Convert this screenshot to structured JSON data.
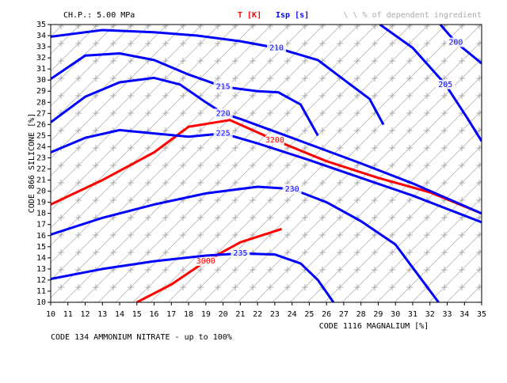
{
  "chart_data": {
    "type": "contour",
    "title": "CH.P.: 5.00 MPa",
    "hatch_legend": "\\ \\ % of dependent ingredient",
    "x_label": "CODE 1116 MAGNALIUM [%]",
    "y_label": "CODE 866 SILICONE [%]",
    "note": "CODE  134 AMMONIUM NITRATE - up to 100%",
    "xlim": [
      10,
      35
    ],
    "ylim": [
      10,
      35
    ],
    "xticks": [
      10,
      11,
      12,
      13,
      14,
      15,
      16,
      17,
      18,
      19,
      20,
      21,
      22,
      23,
      24,
      25,
      26,
      27,
      28,
      29,
      30,
      31,
      32,
      33,
      34,
      35
    ],
    "yticks": [
      10,
      11,
      12,
      13,
      14,
      15,
      16,
      17,
      18,
      19,
      20,
      21,
      22,
      23,
      24,
      25,
      26,
      27,
      28,
      29,
      30,
      31,
      32,
      33,
      34,
      35
    ],
    "series": [
      {
        "name": "T [K]",
        "color": "#ff0000",
        "contours": [
          {
            "level": 3000,
            "x": [
              15,
              17,
              19,
              21,
              23.4
            ],
            "y": [
              10,
              11.6,
              13.7,
              15.4,
              16.6
            ]
          },
          {
            "level": 3200,
            "x": [
              10,
              13,
              16,
              18,
              20.4,
              23,
              26,
              29,
              32,
              35
            ],
            "y": [
              18.8,
              21,
              23.5,
              25.8,
              26.4,
              24.6,
              22.7,
              21.2,
              19.9,
              18
            ]
          }
        ]
      },
      {
        "name": "Isp [s]",
        "color": "#0000ff",
        "contours": [
          {
            "level": 235,
            "x": [
              10,
              13,
              16,
              19,
              21,
              23,
              24.5,
              25.5,
              26.4
            ],
            "y": [
              12.1,
              13,
              13.7,
              14.2,
              14.4,
              14.3,
              13.5,
              12,
              10
            ]
          },
          {
            "level": 230,
            "x": [
              10,
              13,
              16,
              19,
              22,
              24,
              26,
              28,
              30,
              32.5
            ],
            "y": [
              16.1,
              17.6,
              18.8,
              19.8,
              20.4,
              20.2,
              19,
              17.3,
              15.2,
              10
            ]
          },
          {
            "level": 225,
            "x": [
              10,
              12,
              14,
              16,
              18,
              20,
              22,
              25,
              28,
              31,
              35
            ],
            "y": [
              23.5,
              24.8,
              25.5,
              25.2,
              24.9,
              25.2,
              24.3,
              22.8,
              21.2,
              19.6,
              17.2
            ]
          },
          {
            "level": 220,
            "x": [
              10,
              12,
              14,
              16,
              17.5,
              19,
              20,
              21,
              24,
              28,
              31,
              35
            ],
            "y": [
              26.2,
              28.5,
              29.8,
              30.2,
              29.6,
              28,
              27,
              26.5,
              24.8,
              22.5,
              20.7,
              18
            ]
          },
          {
            "level": 215,
            "x": [
              10,
              12,
              14,
              16,
              18,
              20,
              22,
              23.2,
              24.5,
              25.5
            ],
            "y": [
              30.1,
              32.2,
              32.4,
              31.8,
              30.5,
              29.4,
              29,
              28.9,
              27.8,
              25
            ]
          },
          {
            "level": 210,
            "x": [
              10,
              13,
              16,
              18.5,
              21,
              23.1,
              25.5,
              27.3,
              28.5,
              29.3
            ],
            "y": [
              33.9,
              34.5,
              34.3,
              34,
              33.5,
              32.9,
              31.8,
              29.7,
              28.3,
              26
            ]
          },
          {
            "level": 205,
            "x": [
              29.1,
              31,
              32.9,
              34.2,
              35
            ],
            "y": [
              35,
              32.9,
              29.6,
              26.5,
              24.5
            ]
          },
          {
            "level": 200,
            "x": [
              32.6,
              33.5,
              35
            ],
            "y": [
              35,
              33.4,
              31.5
            ]
          }
        ]
      }
    ]
  }
}
